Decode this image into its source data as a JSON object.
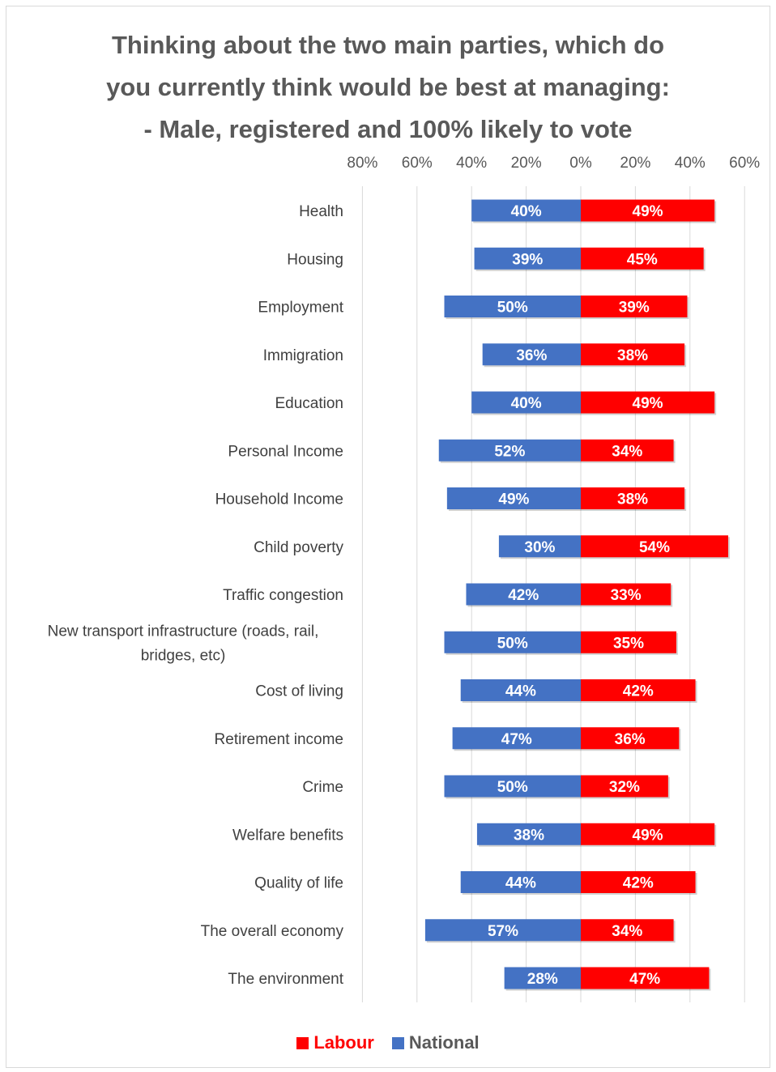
{
  "chart_data": {
    "type": "bar",
    "orientation": "horizontal-diverging",
    "title_lines": [
      "Thinking about the two main parties, which do",
      "you currently think would be best at managing:",
      "- Male, registered and 100% likely to vote"
    ],
    "x_tick_labels": [
      "80%",
      "60%",
      "40%",
      "20%",
      "0%",
      "20%",
      "40%",
      "60%"
    ],
    "xlim": [
      -80,
      60
    ],
    "grid": true,
    "legend_position": "bottom",
    "categories": [
      "Health",
      "Housing",
      "Employment",
      "Immigration",
      "Education",
      "Personal Income",
      "Household Income",
      "Child poverty",
      "Traffic congestion",
      "New transport infrastructure (roads, rail, bridges, etc)",
      "Cost of living",
      "Retirement income",
      "Crime",
      "Welfare benefits",
      "Quality of life",
      "The overall economy",
      "The environment"
    ],
    "series": [
      {
        "name": "Labour",
        "color": "#ff0000",
        "direction": "right",
        "values": [
          49,
          45,
          39,
          38,
          49,
          34,
          38,
          54,
          33,
          35,
          42,
          36,
          32,
          49,
          42,
          34,
          47
        ],
        "labels": [
          "49%",
          "45%",
          "39%",
          "38%",
          "49%",
          "34%",
          "38%",
          "54%",
          "33%",
          "35%",
          "42%",
          "36%",
          "32%",
          "49%",
          "42%",
          "34%",
          "47%"
        ]
      },
      {
        "name": "National",
        "color": "#4472c4",
        "direction": "left",
        "values": [
          40,
          39,
          50,
          36,
          40,
          52,
          49,
          30,
          42,
          50,
          44,
          47,
          50,
          38,
          44,
          57,
          28
        ],
        "labels": [
          "40%",
          "39%",
          "50%",
          "36%",
          "40%",
          "52%",
          "49%",
          "30%",
          "42%",
          "50%",
          "44%",
          "47%",
          "50%",
          "38%",
          "44%",
          "57%",
          "28%"
        ]
      }
    ]
  },
  "legend": [
    {
      "name": "Labour",
      "color": "#ff0000"
    },
    {
      "name": "National",
      "color": "#4472c4"
    }
  ],
  "colors": {
    "title": "#595959",
    "tick": "#595959",
    "category": "#404040",
    "grid": "#d9d9d9"
  }
}
